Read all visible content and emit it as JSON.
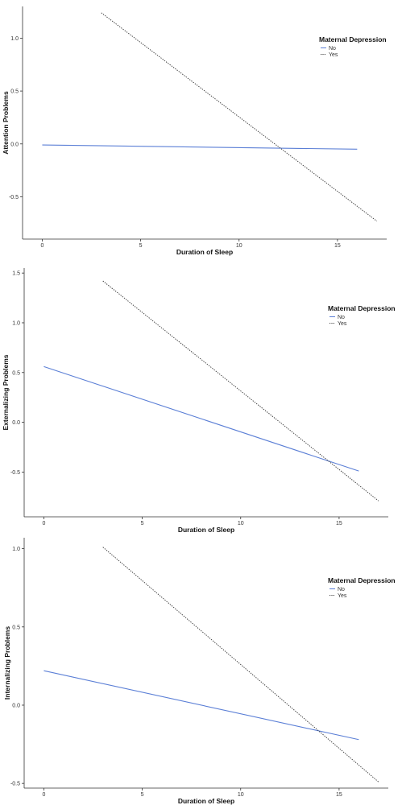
{
  "chart_data": [
    {
      "type": "line",
      "xlabel": "Duration of Sleep",
      "ylabel": "Attention Problems",
      "xlim": [
        -1,
        17.5
      ],
      "ylim": [
        -0.9,
        1.3
      ],
      "xticks": [
        0,
        5,
        10,
        15
      ],
      "yticks": [
        1.0,
        0.5,
        0.0,
        -0.5
      ],
      "xtick_labels": [
        "0",
        "5",
        "10",
        "15"
      ],
      "ytick_labels": [
        "1.0",
        "0.5",
        "0.0",
        "-0.5"
      ],
      "grid": false,
      "legend": {
        "title": "Maternal Depression",
        "position": "right",
        "entries": [
          "No",
          "Yes"
        ]
      },
      "series": [
        {
          "name": "No",
          "color": "#5b7fd6",
          "dash": "solid",
          "x": [
            0,
            16
          ],
          "y": [
            -0.01,
            -0.05
          ]
        },
        {
          "name": "Yes",
          "color": "#444444",
          "dash": "dotted",
          "x": [
            3,
            17
          ],
          "y": [
            1.24,
            -0.73
          ]
        }
      ]
    },
    {
      "type": "line",
      "xlabel": "Duration of Sleep",
      "ylabel": "Externalizing Problems",
      "xlim": [
        -1,
        17.5
      ],
      "ylim": [
        -0.95,
        1.55
      ],
      "xticks": [
        0,
        5,
        10,
        15
      ],
      "yticks": [
        1.5,
        1.0,
        0.5,
        0.0,
        -0.5
      ],
      "xtick_labels": [
        "0",
        "5",
        "10",
        "15"
      ],
      "ytick_labels": [
        "1.5",
        "1.0",
        "0.5",
        "0.0",
        "-0.5"
      ],
      "grid": false,
      "legend": {
        "title": "Maternal Depression",
        "position": "right",
        "entries": [
          "No",
          "Yes"
        ]
      },
      "series": [
        {
          "name": "No",
          "color": "#5b7fd6",
          "dash": "solid",
          "x": [
            0,
            16
          ],
          "y": [
            0.56,
            -0.49
          ]
        },
        {
          "name": "Yes",
          "color": "#444444",
          "dash": "dotted",
          "x": [
            3,
            17
          ],
          "y": [
            1.42,
            -0.79
          ]
        }
      ]
    },
    {
      "type": "line",
      "xlabel": "Duration of Sleep",
      "ylabel": "Internalizing Problems",
      "xlim": [
        -1,
        17.5
      ],
      "ylim": [
        -0.53,
        1.07
      ],
      "xticks": [
        0,
        5,
        10,
        15
      ],
      "yticks": [
        1.0,
        0.5,
        0.0,
        -0.5
      ],
      "xtick_labels": [
        "0",
        "5",
        "10",
        "15"
      ],
      "ytick_labels": [
        "1.0",
        "0.5",
        "0.0",
        "-0.5"
      ],
      "grid": false,
      "legend": {
        "title": "Maternal Depression",
        "position": "right",
        "entries": [
          "No",
          "Yes"
        ]
      },
      "series": [
        {
          "name": "No",
          "color": "#5b7fd6",
          "dash": "solid",
          "x": [
            0,
            16
          ],
          "y": [
            0.22,
            -0.22
          ]
        },
        {
          "name": "Yes",
          "color": "#444444",
          "dash": "dotted",
          "x": [
            3,
            17
          ],
          "y": [
            1.01,
            -0.49
          ]
        }
      ]
    }
  ]
}
